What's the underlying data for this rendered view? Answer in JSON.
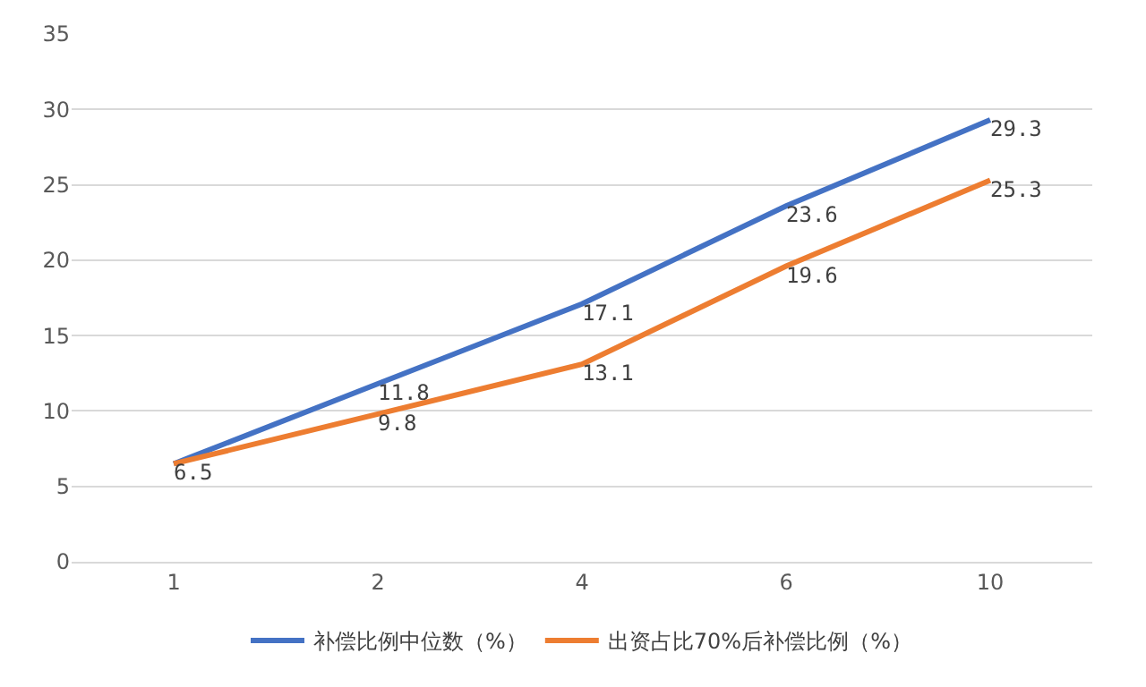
{
  "chart_data": {
    "type": "line",
    "categories": [
      "1",
      "2",
      "4",
      "6",
      "10"
    ],
    "series": [
      {
        "name": "补偿比例中位数（%）",
        "color": "#4472c4",
        "values": [
          6.5,
          11.8,
          17.1,
          23.6,
          29.3
        ],
        "value_labels": [
          null,
          "11.8",
          "17.1",
          "23.6",
          "29.3"
        ]
      },
      {
        "name": "出资占比70%后补偿比例（%）",
        "color": "#ed7d31",
        "values": [
          6.5,
          9.8,
          13.1,
          19.6,
          25.3
        ],
        "value_labels": [
          "6.5",
          "9.8",
          "13.1",
          "19.6",
          "25.3"
        ]
      }
    ],
    "ylim": [
      0,
      35
    ],
    "yticks": [
      0,
      5,
      10,
      15,
      20,
      25,
      30,
      35
    ],
    "grid": "y",
    "legend": "bottom",
    "marker": "none",
    "line_style": "solid"
  }
}
